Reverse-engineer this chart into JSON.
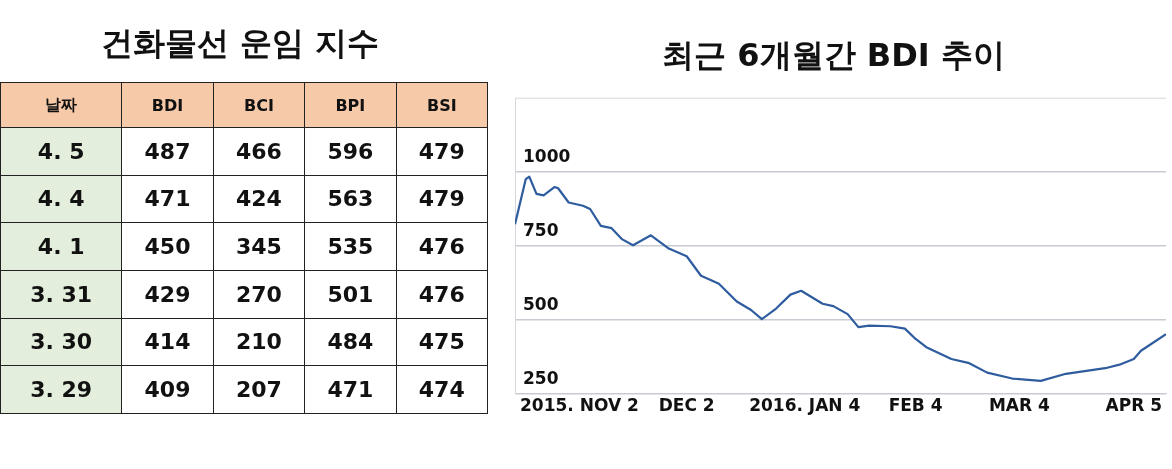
{
  "chart_data": [
    {
      "type": "heatmap",
      "title": "건화물선 운임 지수",
      "ylabel": "날짜",
      "categories": [
        "BDI",
        "BCI",
        "BPI",
        "BSI"
      ],
      "y_categories": [
        "4. 5",
        "4. 4",
        "4. 1",
        "3. 31",
        "3. 30",
        "3. 29"
      ],
      "cells": [
        [
          487,
          466,
          596,
          479
        ],
        [
          471,
          424,
          563,
          479
        ],
        [
          450,
          345,
          535,
          476
        ],
        [
          429,
          270,
          501,
          476
        ],
        [
          414,
          210,
          484,
          475
        ],
        [
          409,
          207,
          471,
          474
        ]
      ],
      "data_labels": true
    },
    {
      "type": "line",
      "title": "최근 6개월간 BDI 추이",
      "x": [
        "2015-10-15",
        "2015-10-18",
        "2015-10-19",
        "2015-10-21",
        "2015-10-23",
        "2015-10-26",
        "2015-10-27",
        "2015-10-30",
        "2015-11-03",
        "2015-11-05",
        "2015-11-08",
        "2015-11-11",
        "2015-11-14",
        "2015-11-17",
        "2015-11-22",
        "2015-11-27",
        "2015-12-02",
        "2015-12-06",
        "2015-12-09",
        "2015-12-11",
        "2015-12-16",
        "2015-12-20",
        "2015-12-23",
        "2015-12-27",
        "2015-12-31",
        "2016-01-03",
        "2016-01-09",
        "2016-01-12",
        "2016-01-16",
        "2016-01-19",
        "2016-01-22",
        "2016-01-28",
        "2016-02-01",
        "2016-02-04",
        "2016-02-07",
        "2016-02-14",
        "2016-02-19",
        "2016-02-24",
        "2016-03-02",
        "2016-03-10",
        "2016-03-17",
        "2016-03-28",
        "2016-04-01",
        "2016-04-05",
        "2016-04-07",
        "2016-04-14"
      ],
      "series": [
        {
          "color": "#2e5c9e",
          "values": [
            823,
            976,
            984,
            926,
            921,
            949,
            946,
            897,
            886,
            875,
            818,
            810,
            772,
            752,
            786,
            741,
            715,
            649,
            633,
            622,
            562,
            533,
            502,
            538,
            585,
            598,
            554,
            546,
            519,
            475,
            480,
            478,
            470,
            435,
            407,
            367,
            353,
            321,
            301,
            293,
            317,
            336,
            348,
            367,
            395,
            451
          ]
        }
      ],
      "xlim": [
        "2015-10-15",
        "2016-04-14"
      ],
      "xticks": [
        {
          "value": "2015-11-02",
          "label": "2015. NOV 2"
        },
        {
          "value": "2015-12-02",
          "label": "DEC 2"
        },
        {
          "value": "2016-01-04",
          "label": "2016. JAN 4"
        },
        {
          "value": "2016-02-04",
          "label": "FEB 4"
        },
        {
          "value": "2016-03-04",
          "label": "MAR 4"
        },
        {
          "value": "2016-04-05",
          "label": "APR 5"
        }
      ],
      "ylim": [
        250,
        1250
      ],
      "yticks": [
        250,
        500,
        750,
        1000
      ],
      "grid": "y",
      "marker": "none",
      "line_style": "solid"
    }
  ]
}
